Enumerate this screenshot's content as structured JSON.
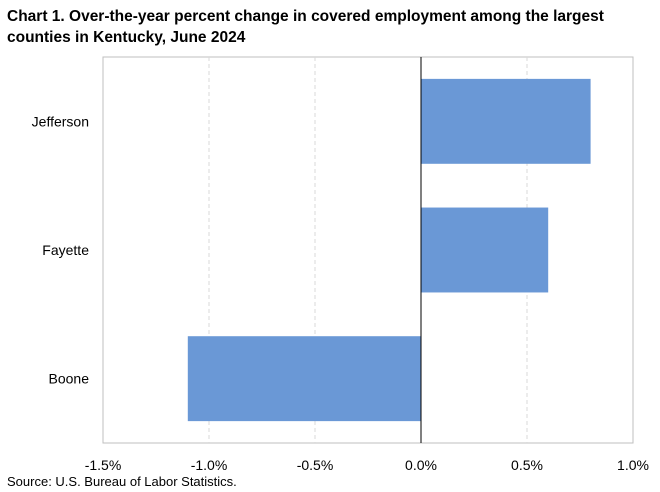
{
  "chart_data": {
    "type": "bar",
    "orientation": "horizontal",
    "title": "Chart 1. Over-the-year percent change in covered employment among the largest counties in Kentucky, June 2024",
    "categories": [
      "Jefferson",
      "Fayette",
      "Boone"
    ],
    "values": [
      0.8,
      0.6,
      -1.1
    ],
    "xlim": [
      -1.5,
      1.0
    ],
    "xticks": [
      -1.5,
      -1.0,
      -0.5,
      0.0,
      0.5,
      1.0
    ],
    "xtick_labels": [
      "-1.5%",
      "-1.0%",
      "-0.5%",
      "0.0%",
      "0.5%",
      "1.0%"
    ],
    "grid": "vertical dashed",
    "bar_color": "#6a98d6",
    "source": "Source: U.S. Bureau of Labor Statistics."
  }
}
